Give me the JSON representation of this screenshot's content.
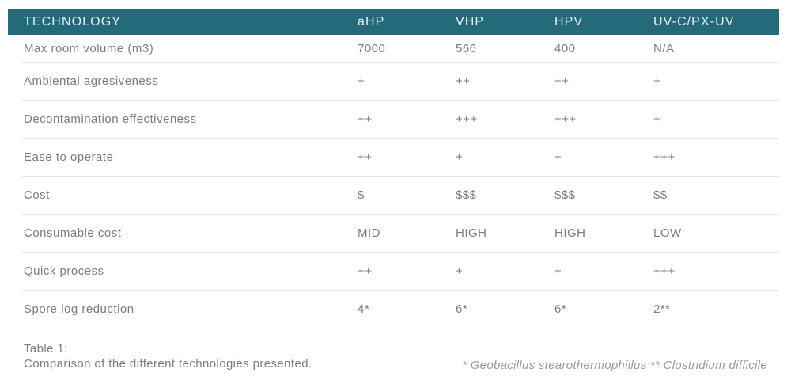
{
  "table": {
    "header": {
      "technology_label": "TECHNOLOGY",
      "columns": [
        "aHP",
        "VHP",
        "HPV",
        "UV-C/PX-UV"
      ]
    },
    "rows": [
      {
        "label": "Max room volume (m3)",
        "values": [
          "7000",
          "566",
          "400",
          "N/A"
        ]
      },
      {
        "label": "Ambiental agresiveness",
        "values": [
          "+",
          "++",
          "++",
          "+"
        ]
      },
      {
        "label": "Decontamination effectiveness",
        "values": [
          "++",
          "+++",
          "+++",
          "+"
        ]
      },
      {
        "label": "Ease to operate",
        "values": [
          "++",
          "+",
          "+",
          "+++"
        ]
      },
      {
        "label": "Cost",
        "values": [
          "$",
          "$$$",
          "$$$",
          "$$"
        ]
      },
      {
        "label": "Consumable cost",
        "values": [
          "MID",
          "HIGH",
          "HIGH",
          "LOW"
        ]
      },
      {
        "label": "Quick process",
        "values": [
          "++",
          "+",
          "+",
          "+++"
        ]
      },
      {
        "label": "Spore log reduction",
        "values": [
          "4*",
          "6*",
          "6*",
          "2**"
        ]
      }
    ],
    "caption": {
      "title": "Table 1:",
      "text": "Comparison of the different technologies presented."
    },
    "footnote": "* Geobacillus stearothermophillus ** Clostridium difficile"
  },
  "colors": {
    "header_bg": "#236a7a",
    "header_text": "#e6f1f4",
    "row_text": "#7c7c7c",
    "divider": "#e4e4e4",
    "caption_text": "#7c7c7c",
    "footnote_text": "#9a9a9a",
    "page_bg": "#ffffff"
  }
}
